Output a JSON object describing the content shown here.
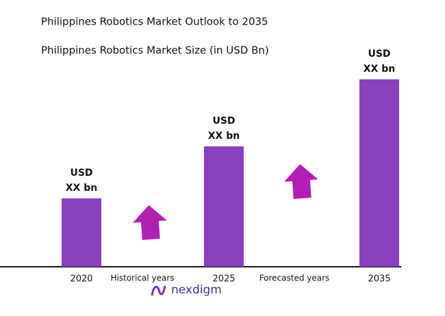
{
  "chart_data": {
    "type": "bar",
    "title": "Philippines Robotics Market Outlook to 2035",
    "subtitle": "Philippines Robotics Market Size (in USD Bn)",
    "categories": [
      "2020",
      "2025",
      "2035"
    ],
    "values": [
      1.0,
      1.76,
      2.74
    ],
    "annotations": [
      [
        "USD",
        "XX bn"
      ],
      [
        "USD",
        "XX bn"
      ],
      [
        "USD",
        "XX bn"
      ]
    ],
    "period_labels": [
      "Historical years",
      "Forecasted years"
    ],
    "color": "#8a40bd",
    "ylim": [
      0,
      3
    ],
    "logo": "nexdigm"
  }
}
